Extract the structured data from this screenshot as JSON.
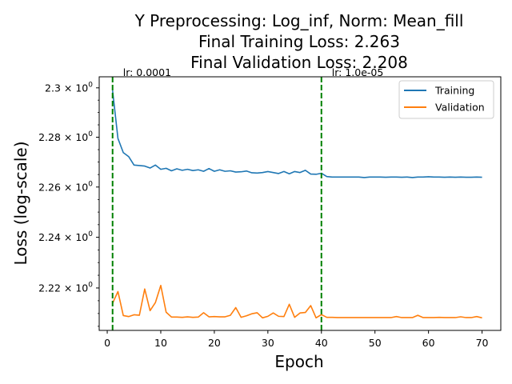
{
  "chart_data": {
    "type": "line",
    "title_lines": [
      "Y Preprocessing: Log_inf, Norm: Mean_fill",
      "Final Training Loss: 2.263",
      "Final Validation Loss: 2.208"
    ],
    "xlabel": "Epoch",
    "ylabel": "Loss (log-scale)",
    "y_scale": "log",
    "xlim": [
      -1.5,
      73.5
    ],
    "ylim": [
      2.2034,
      2.3045
    ],
    "x_ticks": [
      0,
      10,
      20,
      30,
      40,
      50,
      60,
      70
    ],
    "x_tick_labels": [
      "0",
      "10",
      "20",
      "30",
      "40",
      "50",
      "60",
      "70"
    ],
    "y_ticks": [
      2.22,
      2.24,
      2.26,
      2.28,
      2.3
    ],
    "y_tick_labels": [
      {
        "base": "2.22",
        "exp": "0"
      },
      {
        "base": "2.24",
        "exp": "0"
      },
      {
        "base": "2.26",
        "exp": "0"
      },
      {
        "base": "2.28",
        "exp": "0"
      },
      {
        "base": "2.3",
        "exp": "0"
      }
    ],
    "grid": false,
    "legend_placement": "top-right",
    "x": [
      1,
      2,
      3,
      4,
      5,
      6,
      7,
      8,
      9,
      10,
      11,
      12,
      13,
      14,
      15,
      16,
      17,
      18,
      19,
      20,
      21,
      22,
      23,
      24,
      25,
      26,
      27,
      28,
      29,
      30,
      31,
      32,
      33,
      34,
      35,
      36,
      37,
      38,
      39,
      40,
      41,
      42,
      43,
      44,
      45,
      46,
      47,
      48,
      49,
      50,
      51,
      52,
      53,
      54,
      55,
      56,
      57,
      58,
      59,
      60,
      61,
      62,
      63,
      64,
      65,
      66,
      67,
      68,
      69,
      70
    ],
    "series": [
      {
        "name": "Training",
        "color": "#1f77b4",
        "values": [
          2.2989,
          2.2795,
          2.2738,
          2.2722,
          2.2688,
          2.2686,
          2.2684,
          2.2676,
          2.2688,
          2.2671,
          2.2675,
          2.2665,
          2.2673,
          2.2667,
          2.2671,
          2.2666,
          2.2669,
          2.2663,
          2.2674,
          2.2663,
          2.2669,
          2.2663,
          2.2665,
          2.266,
          2.2661,
          2.2664,
          2.2657,
          2.2656,
          2.2658,
          2.2662,
          2.2658,
          2.2654,
          2.2662,
          2.2653,
          2.2662,
          2.2658,
          2.2667,
          2.2652,
          2.2651,
          2.2655,
          2.2642,
          2.264,
          2.264,
          2.264,
          2.264,
          2.264,
          2.264,
          2.2638,
          2.264,
          2.264,
          2.264,
          2.2639,
          2.264,
          2.264,
          2.2639,
          2.264,
          2.2638,
          2.264,
          2.264,
          2.2641,
          2.264,
          2.264,
          2.2639,
          2.264,
          2.2639,
          2.264,
          2.2639,
          2.2639,
          2.264,
          2.2639
        ]
      },
      {
        "name": "Validation",
        "color": "#ff7f0e",
        "values": [
          2.214,
          2.2186,
          2.2092,
          2.2088,
          2.2095,
          2.2093,
          2.2196,
          2.2111,
          2.2143,
          2.221,
          2.2105,
          2.2086,
          2.2086,
          2.2085,
          2.2087,
          2.2085,
          2.2086,
          2.2103,
          2.2087,
          2.2088,
          2.2087,
          2.2087,
          2.2093,
          2.2123,
          2.2085,
          2.2091,
          2.2099,
          2.2103,
          2.2083,
          2.2089,
          2.2102,
          2.2089,
          2.2088,
          2.2136,
          2.2085,
          2.2102,
          2.2104,
          2.2131,
          2.2083,
          2.2096,
          2.2085,
          2.2085,
          2.2084,
          2.2084,
          2.2084,
          2.2084,
          2.2084,
          2.2084,
          2.2084,
          2.2084,
          2.2084,
          2.2084,
          2.2084,
          2.2088,
          2.2084,
          2.2084,
          2.2084,
          2.2093,
          2.2084,
          2.2084,
          2.2084,
          2.2085,
          2.2084,
          2.2084,
          2.2084,
          2.2087,
          2.2084,
          2.2084,
          2.2088,
          2.2083
        ]
      }
    ],
    "vlines": [
      {
        "x": 1,
        "label": "lr: 0.0001",
        "color": "#008000",
        "style": "dashed"
      },
      {
        "x": 40,
        "label": "lr: 1.0e-05",
        "color": "#008000",
        "style": "dashed"
      }
    ]
  }
}
